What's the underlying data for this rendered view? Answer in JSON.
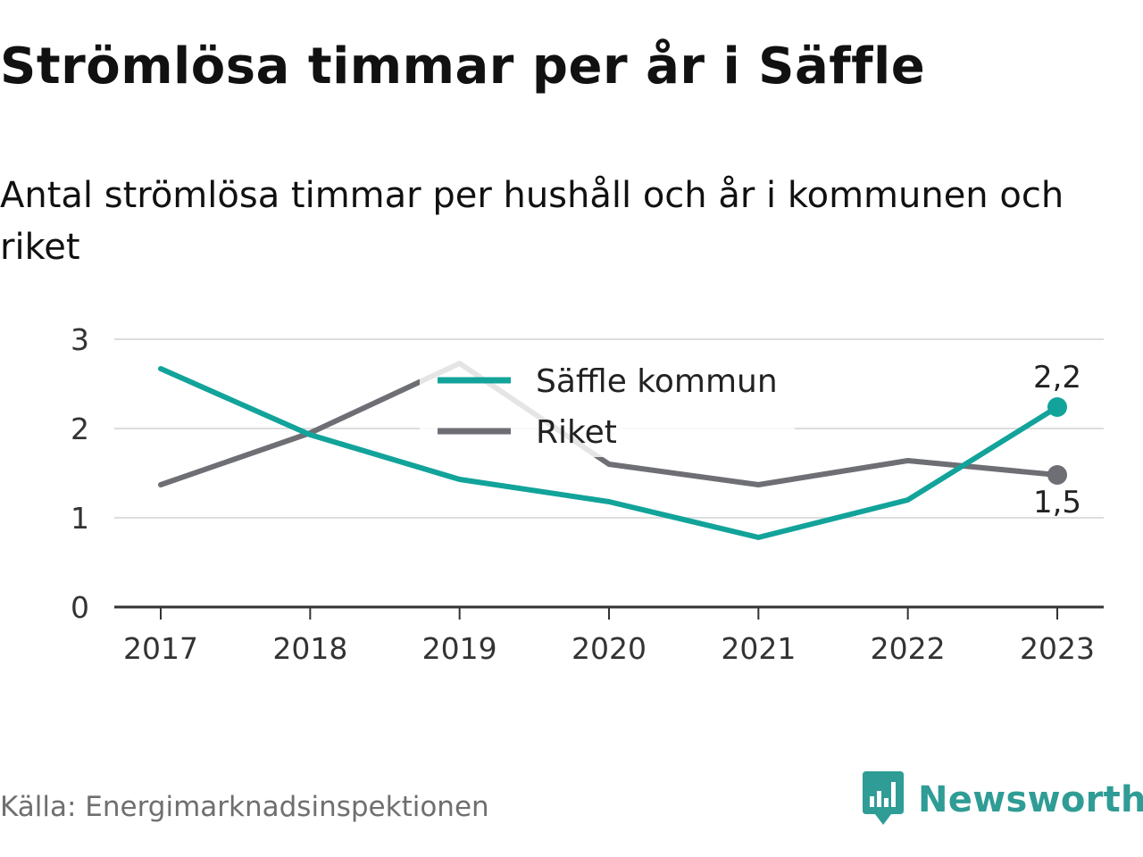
{
  "title": "Strömlösa timmar per år i Säffle",
  "subtitle": "Antal strömlösa timmar per hushåll och år i kommunen och riket",
  "source": "Källa: Energimarknadsinspektionen",
  "brand": {
    "name": "Newsworthy",
    "icon": "newsworthy-logo-icon",
    "color": "#2f9c95"
  },
  "chart_data": {
    "type": "line",
    "x": [
      "2017",
      "2018",
      "2019",
      "2020",
      "2021",
      "2022",
      "2023"
    ],
    "ylim": [
      0,
      3
    ],
    "yticks": [
      "0",
      "1",
      "2",
      "3"
    ],
    "grid": true,
    "legend_position": "top-center",
    "series": [
      {
        "name": "Säffle kommun",
        "color": "#12a39a",
        "values": [
          2.67,
          1.93,
          1.43,
          1.18,
          0.78,
          1.2,
          2.24
        ],
        "end_label": "2,2"
      },
      {
        "name": "Riket",
        "color": "#6e6e75",
        "values": [
          1.37,
          1.95,
          2.73,
          1.6,
          1.37,
          1.64,
          1.48
        ],
        "end_label": "1,5"
      }
    ]
  }
}
